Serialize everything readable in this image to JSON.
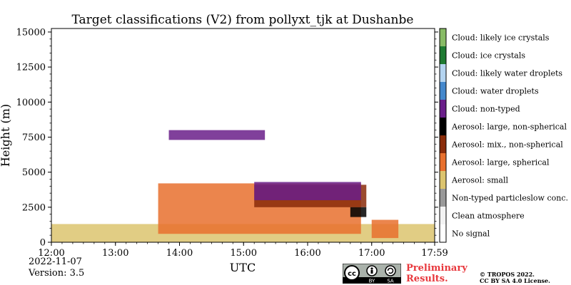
{
  "chart_data": {
    "type": "heatmap",
    "title": "Target classifications (V2) from pollyxt_tjk at Dushanbe",
    "xlabel": "UTC",
    "ylabel": "Height (m)",
    "xlim": [
      "12:00",
      "17:59"
    ],
    "ylim": [
      0,
      15250
    ],
    "x_ticks": [
      "12:00",
      "13:00",
      "14:00",
      "15:00",
      "16:00",
      "17:00",
      "17:59"
    ],
    "y_ticks": [
      "0",
      "2500",
      "5000",
      "7500",
      "10000",
      "12500",
      "15000"
    ],
    "y_tick_values": [
      0,
      2500,
      5000,
      7500,
      10000,
      12500,
      15000
    ],
    "colorbar": [
      {
        "label": "No signal",
        "color": "#ffffff"
      },
      {
        "label": "Clean atmosphere",
        "color": "#f3f3f3"
      },
      {
        "label": "Non-typed particleslow conc.",
        "color": "#999999"
      },
      {
        "label": "Aerosol: small",
        "color": "#dcc46e"
      },
      {
        "label": "Aerosol: large, spherical",
        "color": "#e8702e"
      },
      {
        "label": "Aerosol: mix., non-spherical",
        "color": "#8a2c0a"
      },
      {
        "label": "Aerosol: large, non-spherical",
        "color": "#000000"
      },
      {
        "label": "Cloud: non-typed",
        "color": "#6a1e8a"
      },
      {
        "label": "Cloud: water droplets",
        "color": "#4488cc"
      },
      {
        "label": "Cloud: likely water droplets",
        "color": "#b4d4f0"
      },
      {
        "label": "Cloud: ice crystals",
        "color": "#1e7a32"
      },
      {
        "label": "Cloud: likely ice crystals",
        "color": "#88bb66"
      }
    ],
    "regions": [
      {
        "class": "Aerosol: small",
        "x0": "12:00",
        "x1": "17:59",
        "y0": 0,
        "y1": 1300
      },
      {
        "class": "Aerosol: large, spherical",
        "x0": "13:40",
        "x1": "16:50",
        "y0": 600,
        "y1": 4200
      },
      {
        "class": "Aerosol: mix., non-spherical",
        "x0": "15:10",
        "x1": "16:55",
        "y0": 2500,
        "y1": 4100
      },
      {
        "class": "Cloud: non-typed",
        "x0": "15:10",
        "x1": "16:50",
        "y0": 3000,
        "y1": 4300
      },
      {
        "class": "Cloud: non-typed",
        "x0": "13:50",
        "x1": "15:20",
        "y0": 7300,
        "y1": 8000
      },
      {
        "class": "Aerosol: large, spherical",
        "x0": "17:00",
        "x1": "17:25",
        "y0": 300,
        "y1": 1600
      },
      {
        "class": "Aerosol: large, non-spherical",
        "x0": "16:40",
        "x1": "16:55",
        "y0": 1800,
        "y1": 2500
      }
    ]
  },
  "footer": {
    "date": "2022-11-07",
    "version": "Version: 3.5",
    "preliminary": [
      "Preliminary",
      "Results."
    ],
    "copyright": [
      "© TROPOS 2022.",
      "CC BY SA 4.0 License."
    ],
    "cc_badge_text": [
      "cc",
      "BY",
      "SA"
    ]
  }
}
